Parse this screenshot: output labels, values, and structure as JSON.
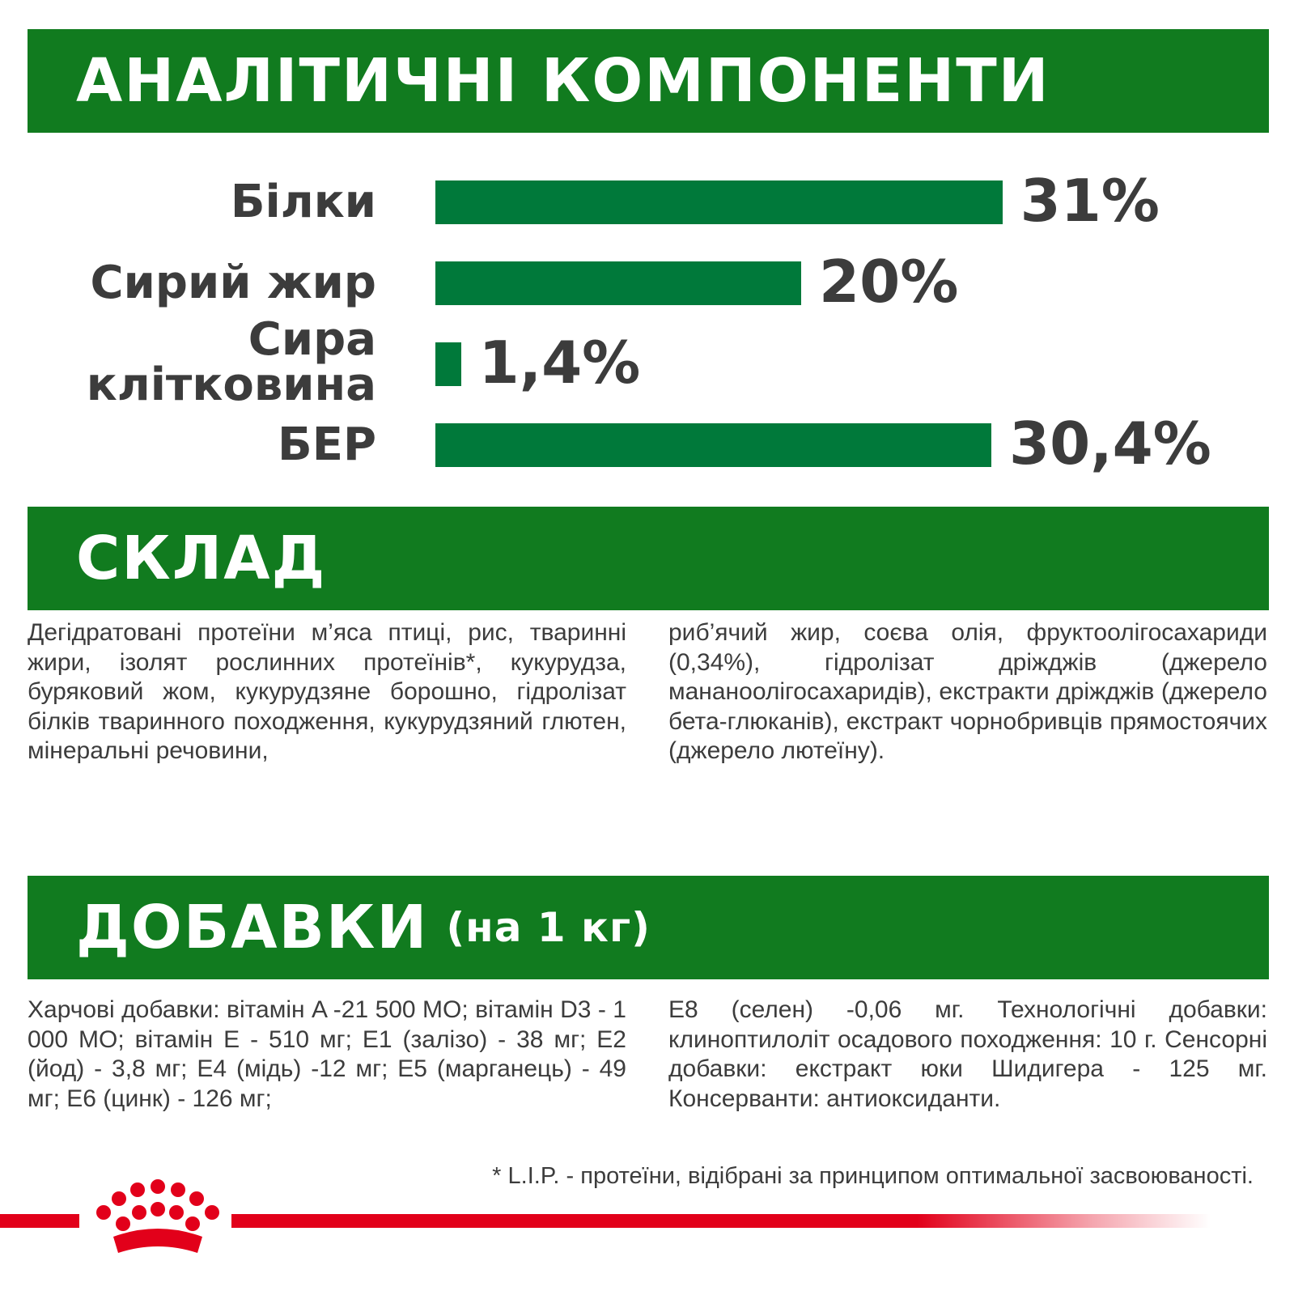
{
  "analytical": {
    "title": "АНАЛІТИЧНІ КОМПОНЕНТИ"
  },
  "chart_data": {
    "type": "bar",
    "orientation": "horizontal",
    "categories": [
      "Білки",
      "Сирий жир",
      "Сира клітковина",
      "БЕР"
    ],
    "values": [
      31,
      20,
      1.4,
      30.4
    ],
    "value_labels": [
      "31%",
      "20%",
      "1,4%",
      "30,4%"
    ],
    "unit": "%",
    "bar_color": "#00793a",
    "title": "",
    "xlabel": "",
    "ylabel": "",
    "grid": false,
    "legend": "none"
  },
  "composition": {
    "title": "СКЛАД",
    "col1": "Дегідратовані протеїни м’яса птиці, рис, тваринні жири, ізолят рослинних протеїнів*, кукурудза, буряковий жом, кукурудзяне борошно, гідролізат білків тваринного походження, кукурудзяний глютен, мінеральні речовини,",
    "col2": "риб’ячий жир, соєва олія, фруктоолігосахариди (0,34%), гідролізат дріжджів (джерело манано­олігосахаридів), екстракти дріжджів (джерело бета-глюканів), екстракт чорнобривців прямостоячих (джерело лютеїну)."
  },
  "additives": {
    "title": "ДОБАВКИ",
    "subtitle": "(на 1 кг)",
    "col1": "Харчові добавки: вітамін A -21 500 МО; вітамін D3 - 1 000 МО; вітамін Е - 510 мг; E1 (залізо) - 38 мг; E2 (йод) - 3,8 мг; E4 (мідь) -12 мг; E5 (марганець) - 49 мг; E6 (цинк) - 126 мг;",
    "col2": "E8 (селен) -0,06 мг. Технологічні добавки: клиноптилоліт осадового походження: 10 г. Сенсорні добавки: екстракт юки Шидигера - 125 мг. Консерванти: антиоксиданти."
  },
  "footnote": "* L.I.P. - протеїни, відібрані за принципом оптимальної засвоюваності.",
  "brand": {
    "logo_icon": "royal-canin-crown-icon",
    "color": "#e2001a"
  },
  "colors": {
    "banner": "#117b1f",
    "bar": "#00793a",
    "text": "#3c3c3c"
  }
}
